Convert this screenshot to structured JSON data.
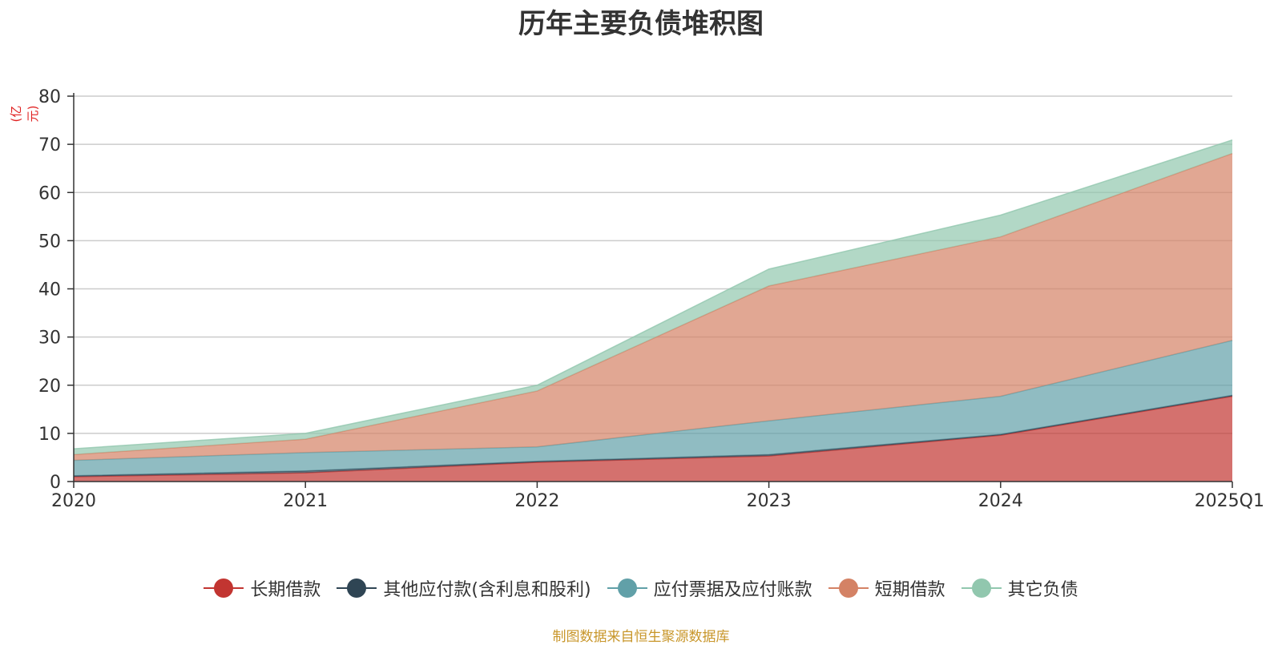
{
  "chart_data": {
    "type": "area",
    "stacked": true,
    "title": "历年主要负债堆积图",
    "unit_label": "(亿元)",
    "categories": [
      "2020",
      "2021",
      "2022",
      "2023",
      "2024",
      "2025Q1"
    ],
    "ylim": [
      0,
      80
    ],
    "yticks": [
      0,
      10,
      20,
      30,
      40,
      50,
      60,
      70,
      80
    ],
    "grid": true,
    "legend_position": "bottom",
    "series": [
      {
        "name": "长期借款",
        "color": "#c23531",
        "values": [
          1.0,
          1.8,
          4.0,
          5.3,
          9.6,
          17.7
        ]
      },
      {
        "name": "其他应付款(含利息和股利)",
        "color": "#2f4554",
        "values": [
          0.2,
          0.4,
          0.2,
          0.3,
          0.2,
          0.2
        ]
      },
      {
        "name": "应付票据及应付账款",
        "color": "#61a0a8",
        "values": [
          3.2,
          3.8,
          3.0,
          7.0,
          7.9,
          11.4
        ]
      },
      {
        "name": "短期借款",
        "color": "#d48265",
        "values": [
          1.2,
          2.8,
          11.6,
          28.0,
          33.1,
          38.8
        ]
      },
      {
        "name": "其它负债",
        "color": "#91c7ae",
        "values": [
          1.2,
          1.2,
          1.2,
          3.5,
          4.5,
          2.8
        ]
      }
    ]
  },
  "footer": {
    "source": "制图数据来自恒生聚源数据库"
  }
}
